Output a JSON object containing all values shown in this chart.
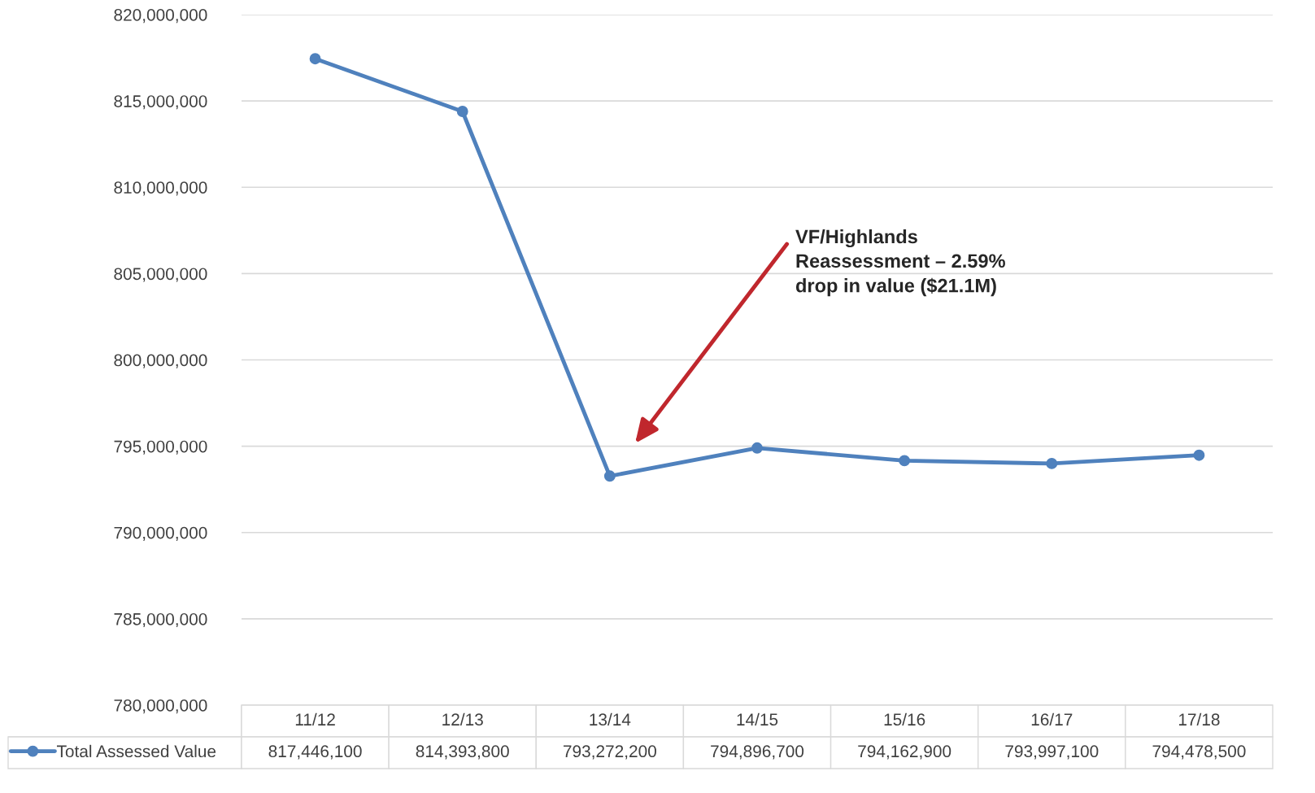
{
  "chart_data": {
    "type": "line",
    "categories": [
      "11/12",
      "12/13",
      "13/14",
      "14/15",
      "15/16",
      "16/17",
      "17/18"
    ],
    "series": [
      {
        "name": "Total Assessed Value",
        "color": "#4f81bd",
        "values": [
          817446100,
          814393800,
          793272200,
          794896700,
          794162900,
          793997100,
          794478500
        ],
        "value_labels": [
          "817,446,100",
          "814,393,800",
          "793,272,200",
          "794,896,700",
          "794,162,900",
          "793,997,100",
          "794,478,500"
        ]
      }
    ],
    "ylim": [
      780000000,
      820000000
    ],
    "yticks": [
      {
        "value": 780000000,
        "label": "780,000,000"
      },
      {
        "value": 785000000,
        "label": "785,000,000"
      },
      {
        "value": 790000000,
        "label": "790,000,000"
      },
      {
        "value": 795000000,
        "label": "795,000,000"
      },
      {
        "value": 800000000,
        "label": "800,000,000"
      },
      {
        "value": 805000000,
        "label": "805,000,000"
      },
      {
        "value": 810000000,
        "label": "810,000,000"
      },
      {
        "value": 815000000,
        "label": "815,000,000"
      },
      {
        "value": 820000000,
        "label": "820,000,000"
      }
    ],
    "grid": "y",
    "marker": "circle",
    "line_style": "solid",
    "legend": "bottom left",
    "annotations": [
      "VF/Highlands\nReassessment – 2.59%\ndrop in value ($21.1M)"
    ]
  }
}
